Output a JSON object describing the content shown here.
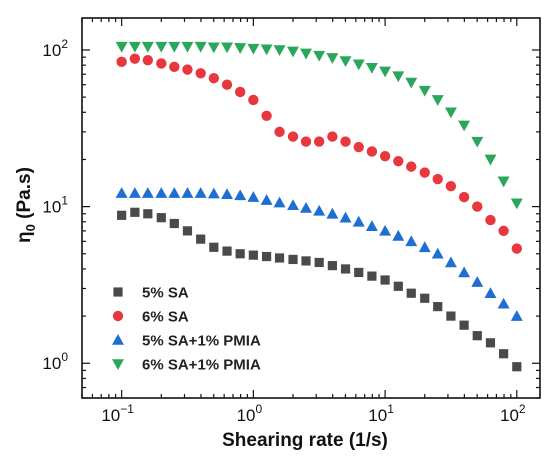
{
  "chart_data": {
    "type": "scatter",
    "xscale": "log",
    "yscale": "log",
    "xlabel": "Shearing rate (1/s)",
    "ylabel": "η0 (Pa.s)",
    "ylabel_main": "η",
    "ylabel_sub": "0",
    "ylabel_rest": " (Pa.s)",
    "xlim": [
      0.05,
      150
    ],
    "ylim": [
      0.6,
      160
    ],
    "x_ticks": [
      {
        "value": 0.1,
        "base": "10",
        "exp": "−1"
      },
      {
        "value": 1,
        "base": "10",
        "exp": "0"
      },
      {
        "value": 10,
        "base": "10",
        "exp": "1"
      },
      {
        "value": 100,
        "base": "10",
        "exp": "2"
      }
    ],
    "y_ticks": [
      {
        "value": 1,
        "label": "10",
        "exp": "0"
      },
      {
        "value": 10,
        "label": "10",
        "exp": "1"
      },
      {
        "value": 100,
        "label": "10",
        "exp": "2"
      }
    ],
    "legend_position": "bottom-left",
    "grid": false,
    "x": [
      0.1,
      0.126,
      0.158,
      0.2,
      0.251,
      0.316,
      0.398,
      0.501,
      0.631,
      0.794,
      1.0,
      1.26,
      1.58,
      2.0,
      2.51,
      3.16,
      3.98,
      5.01,
      6.31,
      7.94,
      10.0,
      12.6,
      15.8,
      20.0,
      25.1,
      31.6,
      39.8,
      50.1,
      63.1,
      79.4,
      100.0
    ],
    "series": [
      {
        "name": "5% SA",
        "marker": "square",
        "color": "#4a4a4a",
        "x": [
          0.1,
          0.126,
          0.158,
          0.2,
          0.251,
          0.316,
          0.398,
          0.501,
          0.631,
          0.794,
          1.0,
          1.26,
          1.58,
          2.0,
          2.51,
          3.16,
          3.98,
          5.01,
          6.31,
          7.94,
          10.0,
          12.6,
          15.8,
          20.0,
          25.1,
          31.6,
          39.8,
          50.1,
          63.1,
          79.4,
          100.0
        ],
        "values": [
          8.8,
          9.2,
          9.0,
          8.5,
          7.8,
          7.0,
          6.2,
          5.5,
          5.2,
          5.0,
          4.9,
          4.8,
          4.7,
          4.6,
          4.5,
          4.4,
          4.2,
          4.0,
          3.8,
          3.6,
          3.4,
          3.1,
          2.8,
          2.6,
          2.3,
          2.0,
          1.75,
          1.5,
          1.35,
          1.15,
          0.95
        ]
      },
      {
        "name": "6% SA",
        "marker": "circle",
        "color": "#e8383d",
        "x": [
          0.1,
          0.126,
          0.158,
          0.2,
          0.251,
          0.316,
          0.398,
          0.501,
          0.631,
          0.794,
          1.0,
          1.26,
          1.58,
          2.0,
          2.51,
          3.16,
          3.98,
          5.01,
          6.31,
          7.94,
          10.0,
          12.6,
          15.8,
          20.0,
          25.1,
          31.6,
          39.8,
          50.1,
          63.1,
          79.4,
          100.0
        ],
        "values": [
          84,
          88,
          86,
          82,
          78,
          75,
          71,
          66,
          60,
          54,
          48,
          38,
          30,
          28,
          26,
          26,
          28,
          26,
          24,
          22.5,
          21,
          19.5,
          18,
          16.5,
          15,
          13.5,
          11.5,
          10,
          8.2,
          7,
          5.4
        ]
      },
      {
        "name": "5% SA+1% PMIA",
        "marker": "triangle-up",
        "color": "#1f6fd1",
        "x": [
          0.1,
          0.126,
          0.158,
          0.2,
          0.251,
          0.316,
          0.398,
          0.501,
          0.631,
          0.794,
          1.0,
          1.26,
          1.58,
          2.0,
          2.51,
          3.16,
          3.98,
          5.01,
          6.31,
          7.94,
          10.0,
          12.6,
          15.8,
          20.0,
          25.1,
          31.6,
          39.8,
          50.1,
          63.1,
          79.4,
          100.0
        ],
        "values": [
          12.2,
          12.2,
          12.2,
          12.2,
          12.2,
          12.2,
          12.2,
          12.1,
          12.0,
          11.8,
          11.5,
          11.0,
          10.6,
          10.2,
          9.8,
          9.4,
          9.0,
          8.5,
          8.0,
          7.5,
          7.0,
          6.5,
          6.0,
          5.5,
          5.0,
          4.4,
          3.8,
          3.3,
          2.8,
          2.4,
          2.0
        ]
      },
      {
        "name": "6% SA+1% PMIA",
        "marker": "triangle-down",
        "color": "#2ca65a",
        "x": [
          0.1,
          0.126,
          0.158,
          0.2,
          0.251,
          0.316,
          0.398,
          0.501,
          0.631,
          0.794,
          1.0,
          1.26,
          1.58,
          2.0,
          2.51,
          3.16,
          3.98,
          5.01,
          6.31,
          7.94,
          10.0,
          12.6,
          15.8,
          20.0,
          25.1,
          31.6,
          39.8,
          50.1,
          63.1,
          79.4,
          100.0
        ],
        "values": [
          105,
          105,
          105,
          105,
          105,
          105,
          105,
          104,
          104,
          103,
          102,
          101,
          100,
          98,
          95,
          92,
          89,
          85,
          81,
          77,
          73,
          68,
          62,
          55,
          48,
          40,
          33,
          26,
          20,
          14.5,
          10.5
        ]
      }
    ]
  }
}
